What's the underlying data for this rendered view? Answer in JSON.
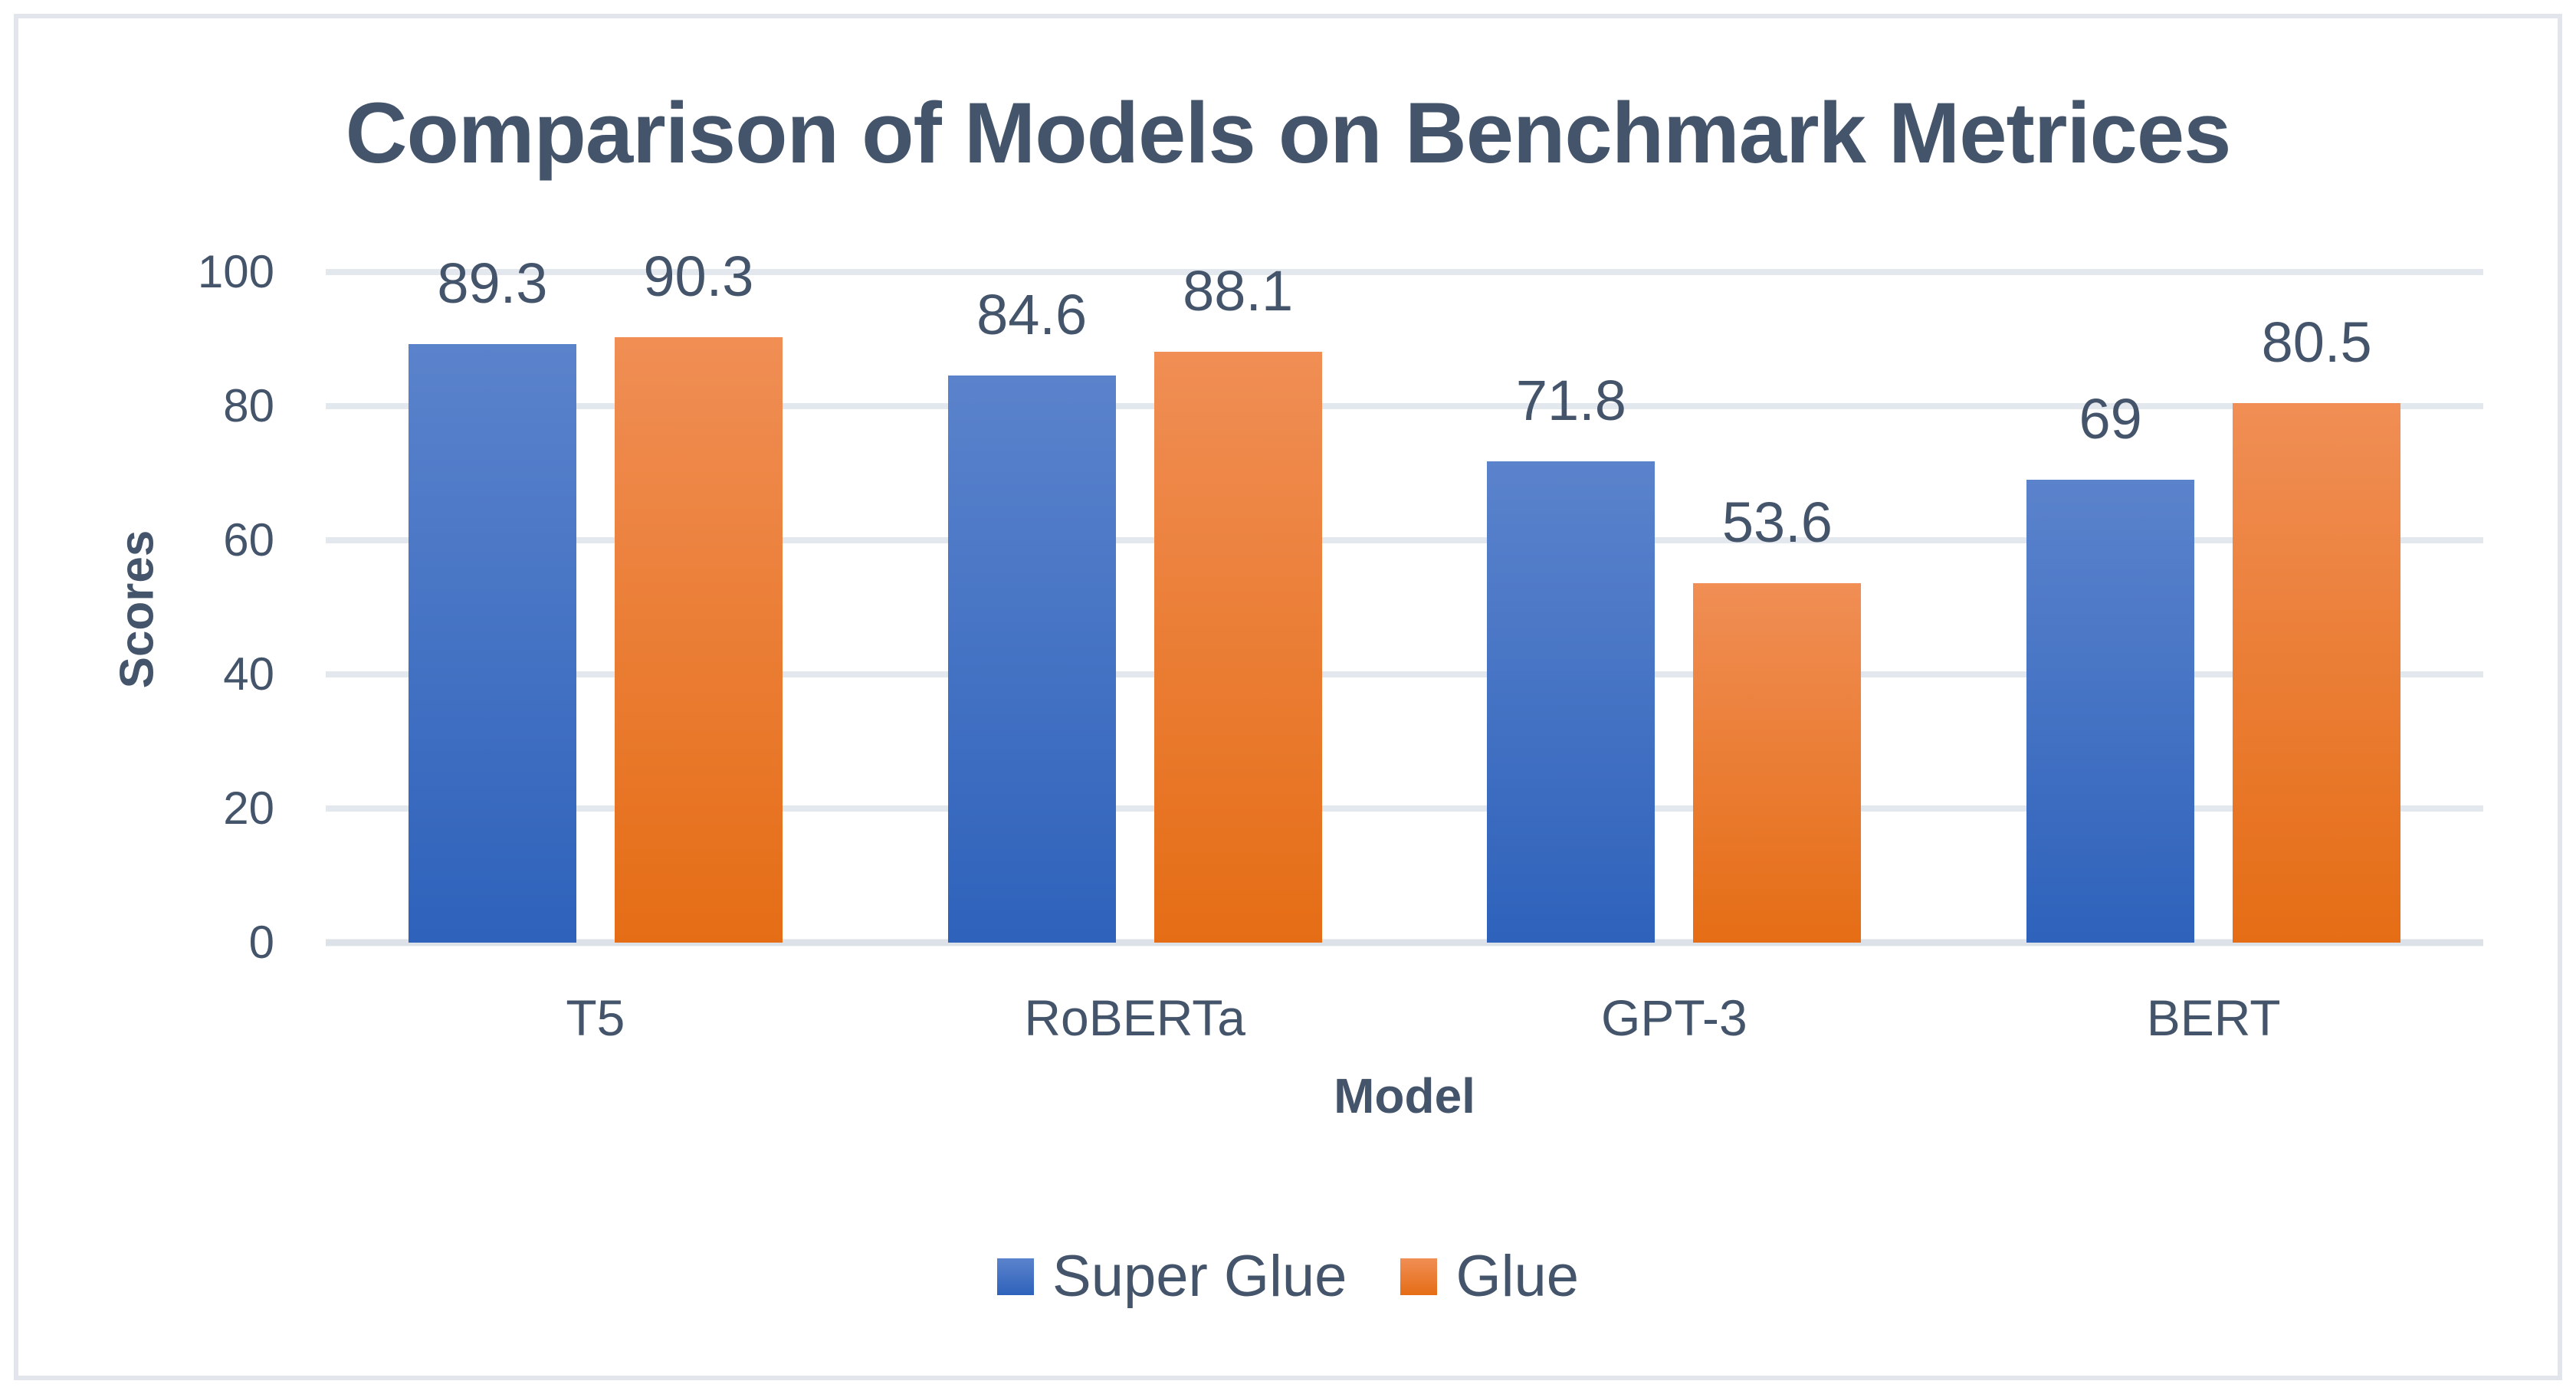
{
  "chart": {
    "title": "Comparison of Models on Benchmark Metrices",
    "x_axis_title": "Model",
    "y_axis_title": "Scores"
  },
  "chart_data": {
    "type": "bar",
    "title": "Comparison of Models on Benchmark Metrices",
    "xlabel": "Model",
    "ylabel": "Scores",
    "categories": [
      "T5",
      "RoBERTa",
      "GPT-3",
      "BERT"
    ],
    "series": [
      {
        "name": "Super Glue",
        "values": [
          89.3,
          84.6,
          71.8,
          69
        ],
        "labels": [
          "89.3",
          "84.6",
          "71.8",
          "69"
        ],
        "color_top": "#5B83CC",
        "color_bottom": "#2E62BB"
      },
      {
        "name": "Glue",
        "values": [
          90.3,
          88.1,
          53.6,
          80.5
        ],
        "labels": [
          "90.3",
          "88.1",
          "53.6",
          "80.5"
        ],
        "color_top": "#F08E55",
        "color_bottom": "#E56D15"
      }
    ],
    "ylim": [
      0,
      100
    ],
    "yticks": [
      0,
      20,
      40,
      60,
      80,
      100
    ],
    "grid": true,
    "legend_position": "bottom",
    "legend": [
      "Super Glue",
      "Glue"
    ]
  },
  "colors": {
    "text": "#44546A",
    "gridline": "#E3E7EE",
    "frame_border": "#E2E5EB",
    "background": "#FFFFFF",
    "series_blue": "#4472C4",
    "series_orange": "#ED7D31"
  }
}
